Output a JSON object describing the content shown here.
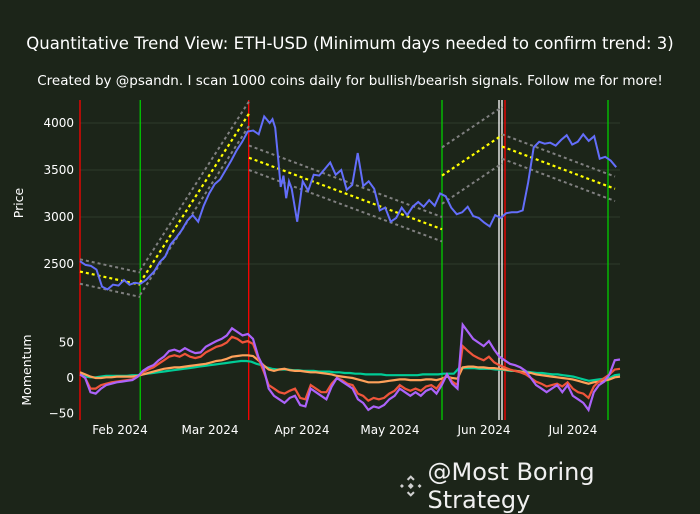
{
  "title": "Quantitative Trend View: ETH-USD (Minimum days needed to confirm trend: 3)",
  "subtitle": "Created by @psandn. I scan 1000 coins daily for bullish/bearish signals. Follow me for more!",
  "watermark": {
    "icon": "binance-diamond-icon",
    "text": "@Most Boring Strategy"
  },
  "colors": {
    "background": "#1c2519",
    "price": "#636efa",
    "trend": "#ffff00",
    "channel": "#808080",
    "bull_signal": "#00cc00",
    "bear_signal": "#ff0000",
    "neutral_signal": "#ffffff",
    "momentum_purple": "#ab63fa",
    "momentum_red": "#ef553b",
    "momentum_orange": "#ffa15a",
    "momentum_teal": "#00cc96",
    "grid": "#2e3a2b"
  },
  "chart_data": [
    {
      "type": "line",
      "title": "ETH-USD Price with trend channels",
      "xlabel": "",
      "ylabel": "Price",
      "ylim": [
        2130,
        4220
      ],
      "yticks": [
        2500,
        3000,
        3500,
        4000
      ],
      "x_range": [
        "2024-01-07",
        "2024-07-20"
      ],
      "xticks": [
        "Feb 2024",
        "Mar 2024",
        "Apr 2024",
        "May 2024",
        "Jun 2024",
        "Jul 2024"
      ],
      "series": [
        {
          "name": "Price",
          "x_day": [
            0,
            2,
            4,
            6,
            8,
            10,
            12,
            14,
            16,
            18,
            20,
            22,
            24,
            25,
            27,
            29,
            31,
            33,
            35,
            37,
            39,
            41,
            43,
            45,
            47,
            49,
            51,
            53,
            55,
            57,
            59,
            61,
            63,
            65,
            67,
            69,
            70,
            71,
            72,
            73,
            74,
            75,
            76,
            77,
            79,
            81,
            83,
            85,
            87,
            89,
            91,
            93,
            95,
            97,
            99,
            101,
            103,
            105,
            107,
            109,
            111,
            113,
            115,
            117,
            119,
            121,
            123,
            125,
            127,
            129,
            131,
            133,
            135,
            137,
            139,
            141,
            143,
            145,
            147,
            149,
            151,
            153,
            155,
            157,
            159,
            161,
            163,
            165,
            167,
            169,
            171,
            173,
            175,
            177,
            179,
            181,
            183,
            185,
            187,
            189,
            191,
            193,
            195
          ],
          "values": [
            2530,
            2490,
            2480,
            2440,
            2260,
            2230,
            2280,
            2270,
            2330,
            2280,
            2300,
            2290,
            2330,
            2360,
            2420,
            2520,
            2580,
            2710,
            2780,
            2860,
            2960,
            3020,
            2950,
            3120,
            3250,
            3350,
            3400,
            3500,
            3600,
            3710,
            3800,
            3910,
            3920,
            3880,
            4070,
            4000,
            4040,
            3950,
            3640,
            3320,
            3440,
            3200,
            3380,
            3300,
            2950,
            3380,
            3280,
            3450,
            3440,
            3510,
            3580,
            3450,
            3500,
            3290,
            3340,
            3680,
            3330,
            3380,
            3300,
            3070,
            3100,
            2950,
            2990,
            3100,
            3020,
            3110,
            3160,
            3110,
            3180,
            3120,
            3250,
            3220,
            3100,
            3030,
            3050,
            3110,
            3010,
            2990,
            2940,
            2900,
            3020,
            2990,
            3040,
            3050,
            3050,
            3070,
            3370,
            3740,
            3800,
            3780,
            3790,
            3760,
            3820,
            3870,
            3770,
            3800,
            3880,
            3810,
            3860,
            3620,
            3640,
            3600,
            3530
          ]
        },
        {
          "name": "Trend",
          "segments": [
            {
              "from_day": 0,
              "to_day": 25,
              "start": 2420,
              "end": 2280
            },
            {
              "from_day": 25,
              "to_day": 70,
              "start": 2300,
              "end": 4100
            },
            {
              "from_day": 70,
              "to_day": 150,
              "start": 3630,
              "end": 2870
            },
            {
              "from_day": 150,
              "to_day": 174,
              "start": 3440,
              "end": 3870
            },
            {
              "from_day": 174,
              "to_day": 196,
              "start": 3750,
              "end": 3300
            }
          ]
        }
      ],
      "vertical_lines": [
        {
          "day": 0,
          "color": "bear"
        },
        {
          "day": 25,
          "color": "bull"
        },
        {
          "day": 70,
          "color": "bear"
        },
        {
          "day": 150,
          "color": "bull"
        },
        {
          "day": 174,
          "color": "neutral"
        },
        {
          "day": 175,
          "color": "neutral"
        },
        {
          "day": 176,
          "color": "bear"
        },
        {
          "day": 219,
          "color": "bull"
        }
      ]
    },
    {
      "type": "line",
      "title": "Momentum",
      "ylabel": "Momentum",
      "ylim": [
        -52,
        78
      ],
      "yticks": [
        -50,
        0,
        50
      ],
      "series": [
        {
          "name": "purple",
          "values": [
            5,
            0,
            -20,
            -22,
            -15,
            -10,
            -8,
            -6,
            -5,
            -4,
            -3,
            2,
            10,
            15,
            18,
            25,
            30,
            38,
            40,
            37,
            42,
            38,
            35,
            36,
            44,
            48,
            52,
            55,
            60,
            70,
            65,
            60,
            62,
            55,
            30,
            15,
            -15,
            -25,
            -30,
            -35,
            -28,
            -25,
            -38,
            -40,
            -15,
            -20,
            -25,
            -30,
            -12,
            0,
            -5,
            -10,
            -15,
            -30,
            -35,
            -45,
            -40,
            -42,
            -38,
            -30,
            -25,
            -15,
            -20,
            -25,
            -20,
            -25,
            -18,
            -15,
            -22,
            -10,
            5,
            -8,
            -15,
            75,
            65,
            55,
            50,
            45,
            52,
            40,
            30,
            25,
            20,
            18,
            15,
            10,
            0,
            -10,
            -15,
            -20,
            -15,
            -10,
            -20,
            -10,
            -25,
            -30,
            -35,
            -45,
            -20,
            -10,
            -5,
            5,
            25,
            26
          ]
        },
        {
          "name": "red",
          "values": [
            5,
            0,
            -15,
            -15,
            -10,
            -8,
            -6,
            -5,
            -4,
            -3,
            -2,
            2,
            8,
            12,
            15,
            20,
            25,
            30,
            32,
            30,
            34,
            30,
            28,
            30,
            36,
            40,
            44,
            46,
            50,
            58,
            55,
            50,
            52,
            48,
            28,
            10,
            -10,
            -15,
            -20,
            -22,
            -18,
            -15,
            -28,
            -30,
            -10,
            -15,
            -20,
            -20,
            -8,
            0,
            -3,
            -8,
            -10,
            -22,
            -25,
            -32,
            -28,
            -30,
            -28,
            -22,
            -18,
            -10,
            -15,
            -18,
            -15,
            -18,
            -12,
            -10,
            -15,
            -5,
            5,
            -5,
            -10,
            45,
            38,
            32,
            28,
            25,
            30,
            22,
            18,
            15,
            12,
            10,
            8,
            5,
            0,
            -5,
            -8,
            -12,
            -10,
            -8,
            -12,
            -6,
            -15,
            -20,
            -22,
            -28,
            -12,
            -5,
            0,
            5,
            12,
            13
          ]
        },
        {
          "name": "orange",
          "values": [
            8,
            5,
            2,
            0,
            0,
            1,
            1,
            2,
            2,
            2,
            2,
            3,
            5,
            7,
            9,
            11,
            13,
            14,
            15,
            15,
            16,
            17,
            18,
            19,
            20,
            22,
            24,
            25,
            27,
            30,
            31,
            32,
            32,
            31,
            25,
            18,
            12,
            10,
            12,
            13,
            11,
            10,
            10,
            9,
            8,
            8,
            7,
            6,
            5,
            3,
            2,
            1,
            0,
            -2,
            -4,
            -6,
            -6,
            -6,
            -5,
            -4,
            -3,
            -2,
            -2,
            -3,
            -3,
            -3,
            -2,
            -2,
            -3,
            -1,
            2,
            0,
            -1,
            15,
            16,
            16,
            15,
            15,
            14,
            14,
            13,
            12,
            11,
            10,
            9,
            8,
            7,
            5,
            4,
            3,
            2,
            1,
            0,
            -1,
            -2,
            -4,
            -6,
            -8,
            -6,
            -5,
            -4,
            -2,
            1,
            2
          ]
        },
        {
          "name": "teal",
          "values": [
            5,
            2,
            1,
            1,
            2,
            3,
            3,
            3,
            3,
            3,
            4,
            4,
            5,
            6,
            7,
            8,
            9,
            10,
            11,
            12,
            13,
            14,
            15,
            16,
            17,
            18,
            19,
            20,
            21,
            22,
            23,
            24,
            24,
            23,
            20,
            18,
            15,
            13,
            12,
            12,
            12,
            11,
            11,
            10,
            10,
            10,
            9,
            9,
            9,
            8,
            8,
            7,
            7,
            6,
            6,
            5,
            5,
            5,
            5,
            4,
            4,
            4,
            4,
            4,
            4,
            4,
            5,
            5,
            5,
            5,
            6,
            6,
            6,
            14,
            14,
            14,
            14,
            13,
            13,
            13,
            12,
            12,
            11,
            10,
            10,
            9,
            9,
            8,
            7,
            7,
            6,
            5,
            5,
            4,
            3,
            2,
            0,
            -2,
            -4,
            -3,
            -2,
            -1,
            0,
            4,
            5
          ]
        }
      ],
      "xticks": [
        "Feb 2024",
        "Mar 2024",
        "Apr 2024",
        "May 2024",
        "Jun 2024",
        "Jul 2024"
      ]
    }
  ]
}
